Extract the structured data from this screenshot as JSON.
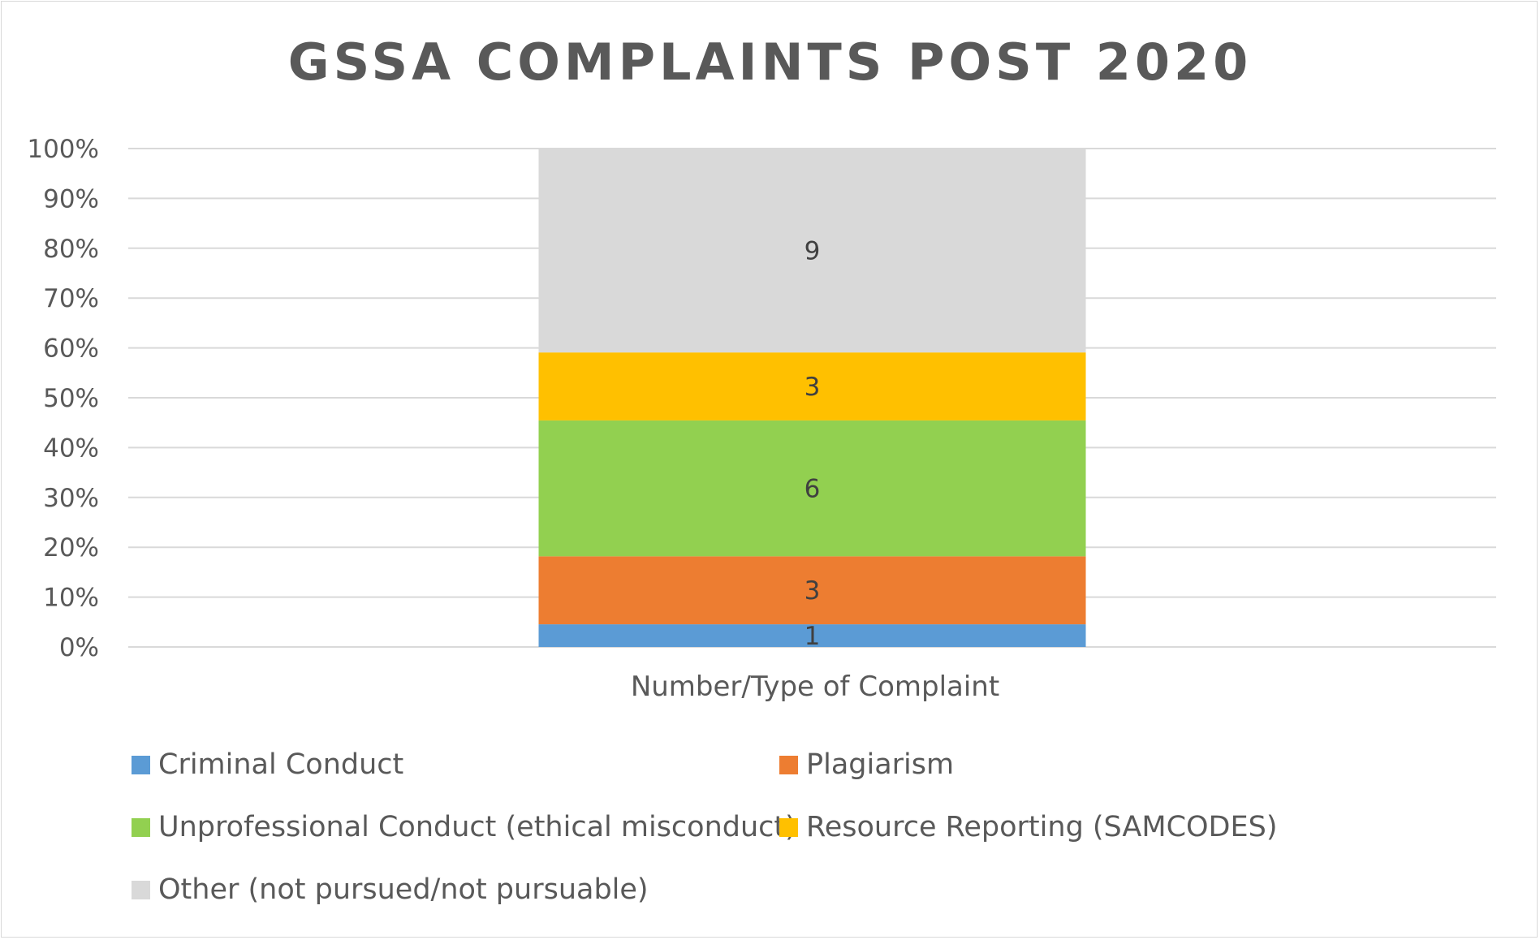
{
  "chart_data": {
    "type": "bar",
    "stacked": true,
    "percent_stacked": true,
    "title": "GSSA COMPLAINTS POST 2020",
    "xlabel": "Number/Type of Complaint",
    "ylabel": "",
    "categories": [
      "Number/Type of Complaint"
    ],
    "yticks": [
      "0%",
      "10%",
      "20%",
      "30%",
      "40%",
      "50%",
      "60%",
      "70%",
      "80%",
      "90%",
      "100%"
    ],
    "ylim": [
      0,
      100
    ],
    "grid": true,
    "legend_position": "bottom",
    "series": [
      {
        "name": "Criminal Conduct",
        "values": [
          1
        ],
        "color": "#5b9bd5"
      },
      {
        "name": "Plagiarism",
        "values": [
          3
        ],
        "color": "#ed7d31"
      },
      {
        "name": "Unprofessional Conduct (ethical misconduct)",
        "values": [
          6
        ],
        "color": "#92d050"
      },
      {
        "name": "Resource Reporting (SAMCODES)",
        "values": [
          3
        ],
        "color": "#ffc000"
      },
      {
        "name": "Other (not pursued/not pursuable)",
        "values": [
          9
        ],
        "color": "#d9d9d9"
      }
    ]
  }
}
